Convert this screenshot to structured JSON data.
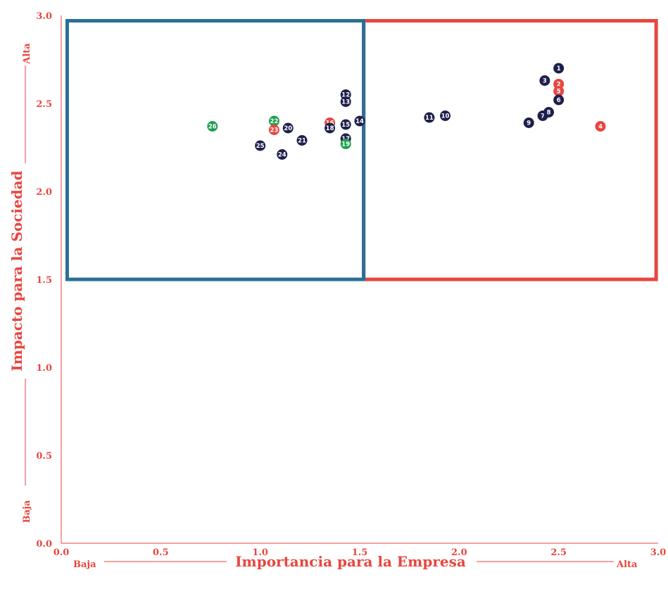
{
  "chart_data": {
    "type": "scatter",
    "title": "",
    "xlabel": "Importancia para la Empresa",
    "ylabel": "Impacto para la Sociedad",
    "xlim": [
      0,
      3
    ],
    "ylim": [
      0,
      3
    ],
    "x_ticks": [
      "0.0",
      "0.5",
      "1.0",
      "1.5",
      "2.0",
      "2.5",
      "3.0"
    ],
    "y_ticks": [
      "0.0",
      "0.5",
      "1.0",
      "1.5",
      "2.0",
      "2.5",
      "3.0"
    ],
    "x_axis_low_label": "Baja",
    "x_axis_high_label": "Alta",
    "y_axis_low_label": "Baja",
    "y_axis_high_label": "Alta",
    "colors": {
      "accent": "#e8463f",
      "blue_box": "#2a6f97",
      "red_box": "#e8463f",
      "navy": "#1f1f4d",
      "red": "#e8463f",
      "green": "#1fa050"
    },
    "regions": [
      {
        "x": [
          0.03,
          1.52
        ],
        "y": [
          1.5,
          2.97
        ],
        "color": "#2a6f97"
      },
      {
        "x": [
          1.52,
          2.99
        ],
        "y": [
          1.5,
          2.97
        ],
        "color": "#e8463f"
      }
    ],
    "points": [
      {
        "label": "1",
        "x": 2.5,
        "y": 2.7,
        "color": "navy"
      },
      {
        "label": "2",
        "x": 2.5,
        "y": 2.61,
        "color": "red"
      },
      {
        "label": "3",
        "x": 2.43,
        "y": 2.63,
        "color": "navy"
      },
      {
        "label": "4",
        "x": 2.71,
        "y": 2.37,
        "color": "red"
      },
      {
        "label": "5",
        "x": 2.5,
        "y": 2.57,
        "color": "red"
      },
      {
        "label": "6",
        "x": 2.5,
        "y": 2.52,
        "color": "navy"
      },
      {
        "label": "7",
        "x": 2.42,
        "y": 2.43,
        "color": "navy"
      },
      {
        "label": "8",
        "x": 2.45,
        "y": 2.45,
        "color": "navy"
      },
      {
        "label": "9",
        "x": 2.35,
        "y": 2.39,
        "color": "navy"
      },
      {
        "label": "10",
        "x": 1.93,
        "y": 2.43,
        "color": "navy"
      },
      {
        "label": "11",
        "x": 1.85,
        "y": 2.42,
        "color": "navy"
      },
      {
        "label": "12",
        "x": 1.43,
        "y": 2.55,
        "color": "navy"
      },
      {
        "label": "13",
        "x": 1.43,
        "y": 2.51,
        "color": "navy"
      },
      {
        "label": "14",
        "x": 1.5,
        "y": 2.4,
        "color": "navy"
      },
      {
        "label": "15",
        "x": 1.43,
        "y": 2.38,
        "color": "navy"
      },
      {
        "label": "16",
        "x": 1.35,
        "y": 2.39,
        "color": "red"
      },
      {
        "label": "17",
        "x": 1.43,
        "y": 2.3,
        "color": "navy"
      },
      {
        "label": "18",
        "x": 1.35,
        "y": 2.36,
        "color": "navy"
      },
      {
        "label": "19",
        "x": 1.43,
        "y": 2.27,
        "color": "green"
      },
      {
        "label": "20",
        "x": 1.14,
        "y": 2.36,
        "color": "navy"
      },
      {
        "label": "21",
        "x": 1.21,
        "y": 2.29,
        "color": "navy"
      },
      {
        "label": "22",
        "x": 1.07,
        "y": 2.4,
        "color": "green"
      },
      {
        "label": "23",
        "x": 1.07,
        "y": 2.35,
        "color": "red"
      },
      {
        "label": "24",
        "x": 1.11,
        "y": 2.21,
        "color": "navy"
      },
      {
        "label": "25",
        "x": 1.0,
        "y": 2.26,
        "color": "navy"
      },
      {
        "label": "26",
        "x": 0.76,
        "y": 2.37,
        "color": "green"
      }
    ]
  }
}
